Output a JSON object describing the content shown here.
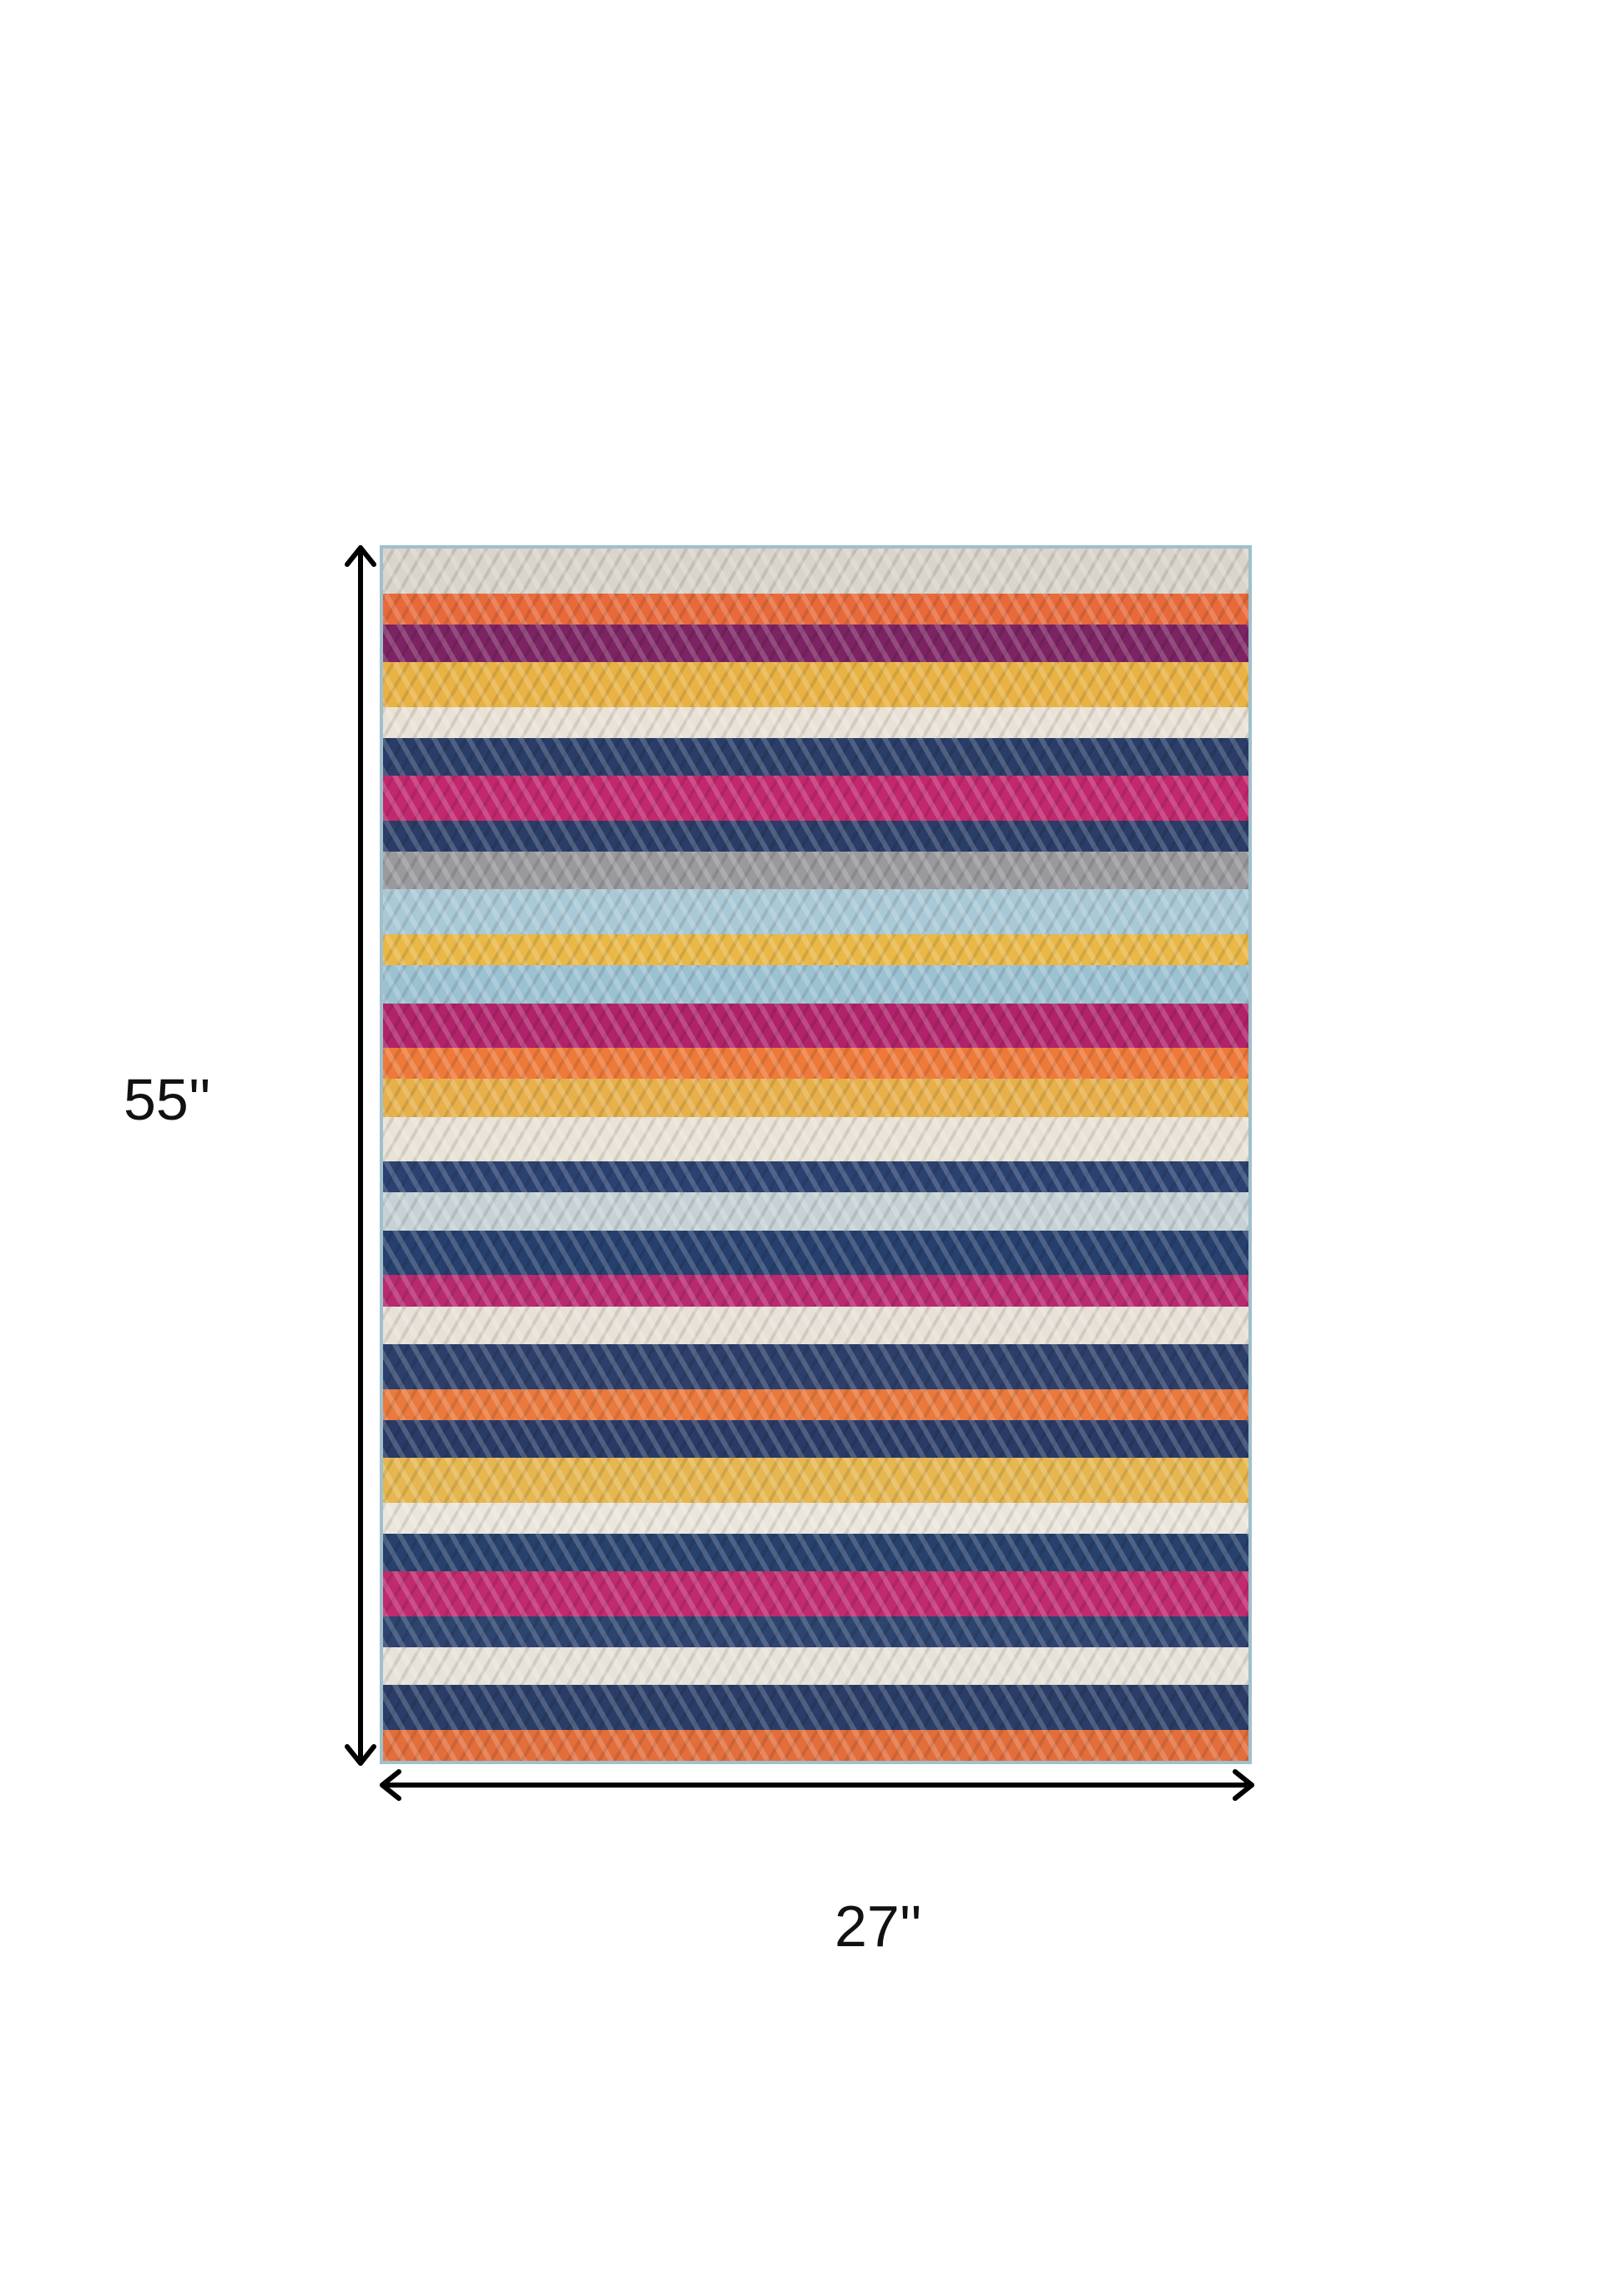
{
  "dimensions": {
    "height_label": "55''",
    "width_label": "27''"
  },
  "rug": {
    "border_color": "#9fc0cc",
    "stripe_colors": [
      "#d9d4cc",
      "#e86a3a",
      "#7c2463",
      "#e9b245",
      "#e9e2d6",
      "#2a3d66",
      "#c2286f",
      "#2a3d66",
      "#9a9a9e",
      "#a9c9d6",
      "#e9b847",
      "#9cc2d2",
      "#b0236a",
      "#ee7a3a",
      "#e8b04a",
      "#e9e3d8",
      "#2b4270",
      "#c7d2d6",
      "#26406d",
      "#b82a70",
      "#e7e1d7",
      "#2c3f6a",
      "#e9793c",
      "#2a3a66",
      "#e6b750",
      "#ebe6dd",
      "#27406c",
      "#c02a6f",
      "#2d446f",
      "#e8e3da",
      "#2a3d66",
      "#e26e3c"
    ]
  }
}
